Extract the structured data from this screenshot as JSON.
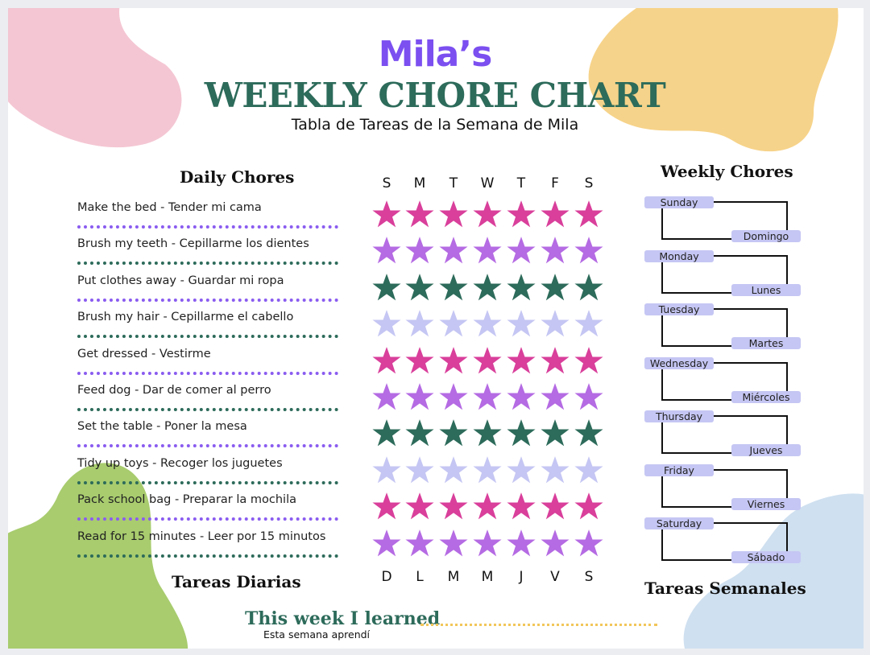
{
  "title": {
    "name": "Mila’s",
    "main": "WEEKLY CHORE CHART",
    "subtitle": "Tabla de Tareas de la Semana de Mila"
  },
  "daily": {
    "heading": "Daily Chores",
    "heading_es": "Tareas Diarias",
    "day_letters_en": [
      "S",
      "M",
      "T",
      "W",
      "T",
      "F",
      "S"
    ],
    "day_letters_es": [
      "D",
      "L",
      "M",
      "M",
      "J",
      "V",
      "S"
    ],
    "chores": [
      {
        "label": "Make the bed - Tender mi cama",
        "star_color": "#d93f9b",
        "line_color": "#8a5cf0"
      },
      {
        "label": "Brush my teeth - Cepillarme los dientes",
        "star_color": "#b56be3",
        "line_color": "#2d6b5a"
      },
      {
        "label": "Put clothes away - Guardar mi ropa",
        "star_color": "#2d6b5a",
        "line_color": "#8a5cf0"
      },
      {
        "label": "Brush my hair - Cepillarme el cabello",
        "star_color": "#c5c6f3",
        "line_color": "#2d6b5a"
      },
      {
        "label": "Get dressed - Vestirme",
        "star_color": "#d93f9b",
        "line_color": "#8a5cf0"
      },
      {
        "label": "Feed dog - Dar de comer al perro",
        "star_color": "#b56be3",
        "line_color": "#2d6b5a"
      },
      {
        "label": "Set the table - Poner la mesa",
        "star_color": "#2d6b5a",
        "line_color": "#8a5cf0"
      },
      {
        "label": "Tidy up toys - Recoger los juguetes",
        "star_color": "#c5c6f3",
        "line_color": "#2d6b5a"
      },
      {
        "label": "Pack school bag - Preparar la mochila",
        "star_color": "#d93f9b",
        "line_color": "#8a5cf0"
      },
      {
        "label": "Read for 15 minutes - Leer por 15 minutos",
        "star_color": "#b56be3",
        "line_color": "#2d6b5a"
      }
    ]
  },
  "weekly": {
    "heading": "Weekly Chores",
    "heading_es": "Tareas Semanales",
    "days": [
      {
        "en": "Sunday",
        "es": "Domingo"
      },
      {
        "en": "Monday",
        "es": "Lunes"
      },
      {
        "en": "Tuesday",
        "es": "Martes"
      },
      {
        "en": "Wednesday",
        "es": "Miércoles"
      },
      {
        "en": "Thursday",
        "es": "Jueves"
      },
      {
        "en": "Friday",
        "es": "Viernes"
      },
      {
        "en": "Saturday",
        "es": "Sábado"
      }
    ]
  },
  "learned": {
    "title": "This week I learned",
    "subtitle": "Esta semana aprendí"
  },
  "colors": {
    "purple": "#7b4ff0",
    "green": "#2d6b5a",
    "blob_pink": "#f4c6d3",
    "blob_yellow": "#f6d38a",
    "blob_green": "#a8cc6e",
    "blob_blue": "#cfe0f0"
  }
}
